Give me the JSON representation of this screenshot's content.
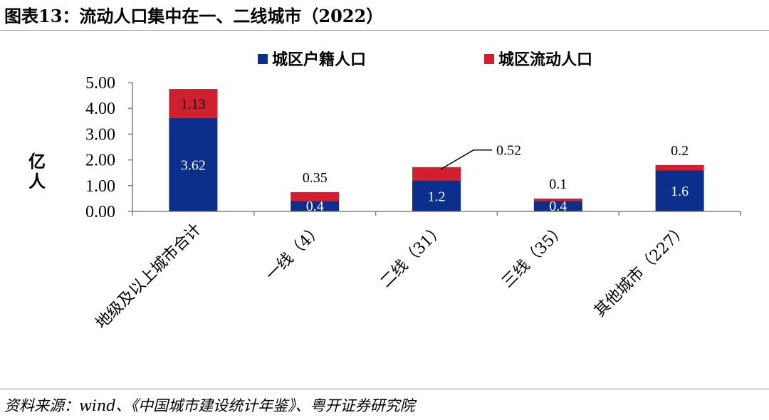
{
  "header": {
    "title": "图表13：流动人口集中在一、二线城市（2022）"
  },
  "footer": {
    "source": "资料来源：wind、《中国城市建设统计年鉴》、粤开证券研究院"
  },
  "colors": {
    "registered": "#0B2F8A",
    "floating": "#D01F2E",
    "axis": "#7f7f7f"
  },
  "chart_data": {
    "type": "bar",
    "stacked": true,
    "categories": [
      "地级及以上城市合计",
      "一线（4）",
      "二线（31）",
      "三线（35）",
      "其他城市（227）"
    ],
    "series": [
      {
        "name": "城区户籍人口",
        "values": [
          3.62,
          0.4,
          1.2,
          0.4,
          1.6
        ],
        "labels": [
          "3.62",
          "0.4",
          "1.2",
          "0.4",
          "1.6"
        ]
      },
      {
        "name": "城区流动人口",
        "values": [
          1.13,
          0.35,
          0.52,
          0.1,
          0.2
        ],
        "labels": [
          "1.13",
          "0.35",
          "0.52",
          "0.1",
          "0.2"
        ]
      }
    ],
    "ylabel": "亿人",
    "ylim": [
      0,
      5
    ],
    "yticks": [
      0,
      1,
      2,
      3,
      4,
      5
    ],
    "ytick_labels": [
      "0.00",
      "1.00",
      "2.00",
      "3.00",
      "4.00",
      "5.00"
    ],
    "legend_position": "top"
  }
}
